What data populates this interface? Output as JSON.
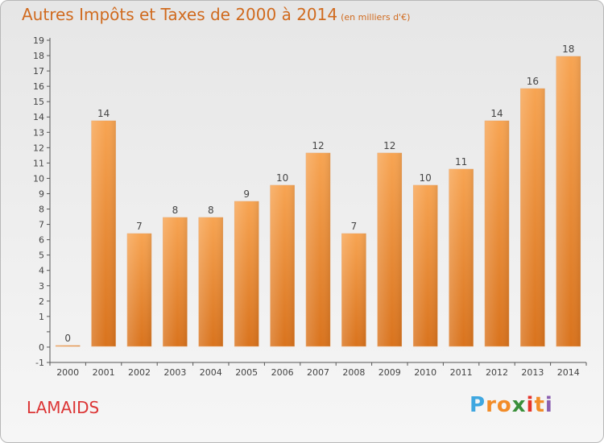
{
  "chart_data": {
    "type": "bar",
    "title": "Autres Impôts et Taxes de 2000 à 2014",
    "unit": "(en milliers d'€)",
    "categories": [
      "2000",
      "2001",
      "2002",
      "2003",
      "2004",
      "2005",
      "2006",
      "2007",
      "2008",
      "2009",
      "2010",
      "2011",
      "2012",
      "2013",
      "2014"
    ],
    "values": [
      0,
      14,
      7,
      8,
      8,
      9,
      10,
      12,
      7,
      12,
      10,
      11,
      14,
      16,
      18
    ],
    "data_labels": [
      "0",
      "14",
      "7",
      "8",
      "8",
      "9",
      "10",
      "12",
      "7",
      "12",
      "10",
      "11",
      "14",
      "16",
      "18"
    ],
    "y_ticks": [
      "-1",
      "0",
      "",
      "1",
      "2",
      "3",
      "4",
      "5",
      "6",
      "7",
      "8",
      "9",
      "10",
      "11",
      "12",
      "13",
      "14",
      "15",
      "16",
      "17",
      "18",
      "19"
    ],
    "ylim": [
      -1,
      19
    ],
    "grid": false,
    "bar_color": "#f08a2c"
  },
  "footer": {
    "commune": "LAMAIDS",
    "logo_letters": [
      "P",
      "r",
      "o",
      "x",
      "i",
      "t",
      "i"
    ],
    "logo_colors": [
      "#3fa7e0",
      "#f28c28",
      "#f28c28",
      "#3a8f3a",
      "#e5342a",
      "#f28c28",
      "#8a5fb0"
    ]
  }
}
